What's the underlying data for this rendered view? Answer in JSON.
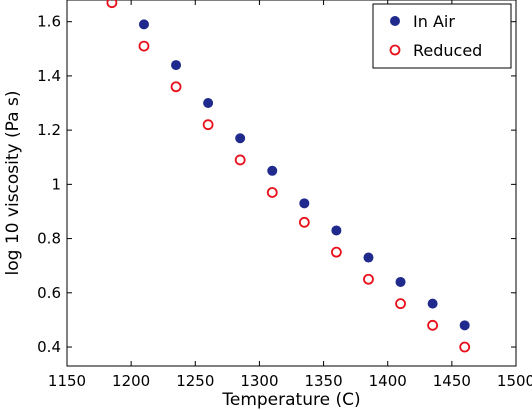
{
  "chart_data": {
    "type": "scatter",
    "title": "",
    "xlabel": "Temperature (C)",
    "ylabel": "log 10 viscosity (Pa s)",
    "xlim": [
      1150,
      1500
    ],
    "ylim": [
      0.33,
      1.68
    ],
    "xticks": [
      1150,
      1200,
      1250,
      1300,
      1350,
      1400,
      1450,
      1500
    ],
    "yticks": [
      0.4,
      0.6,
      0.8,
      1,
      1.2,
      1.4,
      1.6
    ],
    "xtick_labels": [
      "1150",
      "1200",
      "1250",
      "1300",
      "1350",
      "1400",
      "1450",
      "1500"
    ],
    "ytick_labels": [
      "0.4",
      "0.6",
      "0.8",
      "1",
      "1.2",
      "1.4",
      "1.6"
    ],
    "grid": false,
    "legend_position": "top-right",
    "series": [
      {
        "name": "In Air",
        "marker": "filled-circle",
        "color": "#1f2a8c",
        "x": [
          1210,
          1235,
          1260,
          1285,
          1310,
          1335,
          1360,
          1385,
          1410,
          1435,
          1460
        ],
        "y": [
          1.59,
          1.44,
          1.3,
          1.17,
          1.05,
          0.93,
          0.83,
          0.73,
          0.64,
          0.56,
          0.48
        ]
      },
      {
        "name": "Reduced",
        "marker": "open-circle",
        "color": "#e8101a",
        "x": [
          1185,
          1210,
          1235,
          1260,
          1285,
          1310,
          1335,
          1360,
          1385,
          1410,
          1435,
          1460
        ],
        "y": [
          1.67,
          1.51,
          1.36,
          1.22,
          1.09,
          0.97,
          0.86,
          0.75,
          0.65,
          0.56,
          0.48,
          0.4
        ]
      }
    ]
  }
}
